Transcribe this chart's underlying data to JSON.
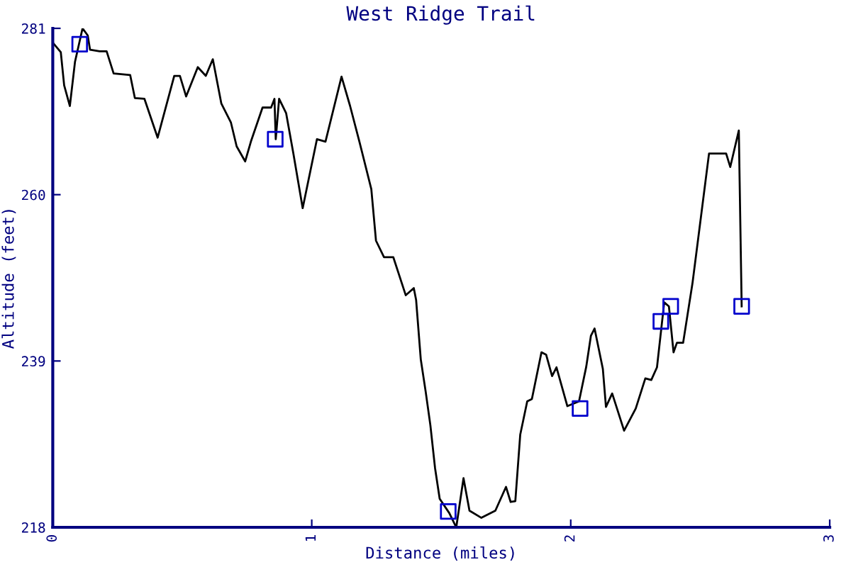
{
  "chart_data": {
    "type": "line",
    "title": "West Ridge Trail",
    "xlabel": "Distance (miles)",
    "ylabel": "Altitude (feet)",
    "xlim": [
      0,
      3
    ],
    "xticks": [
      0,
      1,
      2,
      3
    ],
    "ylim": [
      218,
      281
    ],
    "yticks": [
      218,
      239,
      260,
      281
    ],
    "grid": false,
    "legend": false,
    "series": [
      {
        "color": "#000000",
        "marker": "none",
        "line_style": "solid",
        "x": [
          0.0,
          0.031,
          0.044,
          0.066,
          0.086,
          0.115,
          0.135,
          0.144,
          0.181,
          0.208,
          0.235,
          0.299,
          0.317,
          0.354,
          0.405,
          0.469,
          0.491,
          0.515,
          0.56,
          0.591,
          0.618,
          0.651,
          0.688,
          0.71,
          0.743,
          0.765,
          0.81,
          0.843,
          0.856,
          0.861,
          0.874,
          0.901,
          0.929,
          0.965,
          1.02,
          1.053,
          1.115,
          1.148,
          1.184,
          1.23,
          1.248,
          1.279,
          1.315,
          1.348,
          1.363,
          1.394,
          1.403,
          1.421,
          1.44,
          1.458,
          1.476,
          1.494,
          1.531,
          1.558,
          1.586,
          1.609,
          1.655,
          1.709,
          1.75,
          1.768,
          1.786,
          1.805,
          1.832,
          1.85,
          1.887,
          1.905,
          1.928,
          1.945,
          1.987,
          2.032,
          2.06,
          2.078,
          2.092,
          2.124,
          2.136,
          2.16,
          2.206,
          2.251,
          2.288,
          2.311,
          2.333,
          2.361,
          2.379,
          2.397,
          2.41,
          2.434,
          2.47,
          2.534,
          2.6,
          2.616,
          2.649,
          2.66
        ],
        "values": [
          279.2,
          278.0,
          273.8,
          271.2,
          276.8,
          281.0,
          280.1,
          278.3,
          278.1,
          278.1,
          275.3,
          275.1,
          272.2,
          272.1,
          267.2,
          275.0,
          275.0,
          272.4,
          276.1,
          275.0,
          277.1,
          271.5,
          269.1,
          266.1,
          264.2,
          266.7,
          271.0,
          271.0,
          272.1,
          267.0,
          272.1,
          270.3,
          265.2,
          258.3,
          267.0,
          266.7,
          274.9,
          271.2,
          266.7,
          260.7,
          254.2,
          252.1,
          252.1,
          248.8,
          247.3,
          248.2,
          246.7,
          239.2,
          235.1,
          230.9,
          225.5,
          221.6,
          219.8,
          218.0,
          224.2,
          220.1,
          219.2,
          220.1,
          223.1,
          221.2,
          221.3,
          229.7,
          233.9,
          234.2,
          240.1,
          239.8,
          237.1,
          238.2,
          233.3,
          233.9,
          238.3,
          242.2,
          243.1,
          238.0,
          233.2,
          234.9,
          230.2,
          233.0,
          236.8,
          236.6,
          238.2,
          246.4,
          245.9,
          240.1,
          241.3,
          241.3,
          248.8,
          265.2,
          265.2,
          263.5,
          268.1,
          245.9
        ]
      },
      {
        "type": "scatter",
        "color": "#0000cc",
        "marker": "square",
        "x": [
          0.104,
          0.859,
          1.527,
          2.036,
          2.348,
          2.386,
          2.66
        ],
        "values": [
          279.0,
          267.0,
          220.0,
          233.0,
          244.0,
          245.9,
          245.9
        ]
      }
    ]
  }
}
